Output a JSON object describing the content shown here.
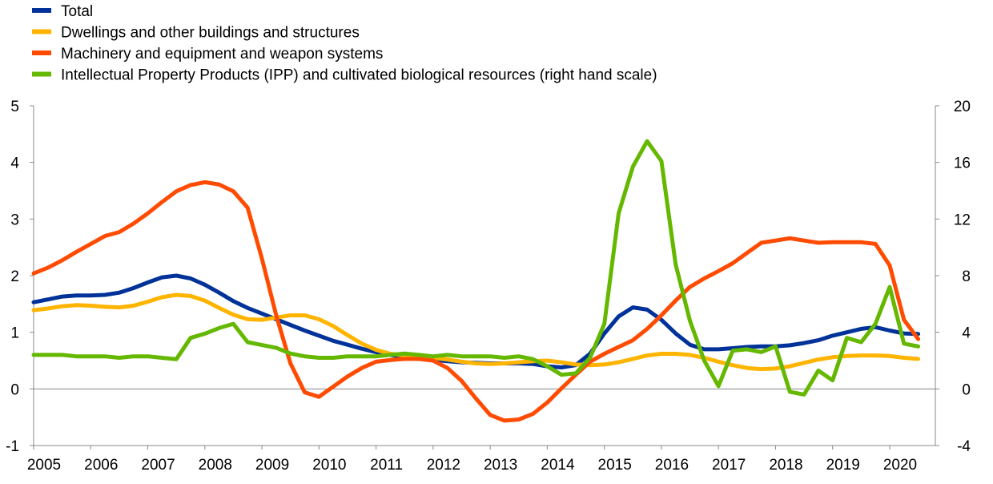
{
  "chart_data": {
    "type": "line",
    "title": "",
    "xlabel": "",
    "ylabel": "",
    "x_tick_labels": [
      "2005",
      "2006",
      "2007",
      "2008",
      "2009",
      "2010",
      "2011",
      "2012",
      "2013",
      "2014",
      "2015",
      "2016",
      "2017",
      "2018",
      "2019",
      "2020"
    ],
    "x_range": [
      2005.0,
      2020.8
    ],
    "ylim_left": [
      -1,
      5
    ],
    "yticks_left": [
      -1,
      0,
      1,
      2,
      3,
      4,
      5
    ],
    "ylim_right": [
      -4,
      20
    ],
    "yticks_right": [
      -4,
      0,
      4,
      8,
      12,
      16,
      20
    ],
    "legend_position": "top-left",
    "grid": false,
    "series": [
      {
        "name": "Total",
        "color": "#003299",
        "axis": "left",
        "x": [
          2005.0,
          2005.25,
          2005.5,
          2005.75,
          2006.0,
          2006.25,
          2006.5,
          2006.75,
          2007.0,
          2007.25,
          2007.5,
          2007.75,
          2008.0,
          2008.25,
          2008.5,
          2008.75,
          2009.0,
          2009.25,
          2009.5,
          2009.75,
          2010.0,
          2010.25,
          2010.5,
          2010.75,
          2011.0,
          2011.25,
          2011.5,
          2011.75,
          2012.0,
          2012.25,
          2012.5,
          2012.75,
          2013.0,
          2013.25,
          2013.5,
          2013.75,
          2014.0,
          2014.25,
          2014.5,
          2014.75,
          2015.0,
          2015.25,
          2015.5,
          2015.75,
          2016.0,
          2016.25,
          2016.5,
          2016.75,
          2017.0,
          2017.25,
          2017.5,
          2017.75,
          2018.0,
          2018.25,
          2018.5,
          2018.75,
          2019.0,
          2019.25,
          2019.5,
          2019.75,
          2020.0,
          2020.25,
          2020.5
        ],
        "y": [
          1.53,
          1.58,
          1.63,
          1.65,
          1.65,
          1.66,
          1.7,
          1.78,
          1.88,
          1.97,
          2.0,
          1.95,
          1.84,
          1.7,
          1.55,
          1.43,
          1.33,
          1.23,
          1.13,
          1.03,
          0.94,
          0.85,
          0.78,
          0.71,
          0.65,
          0.6,
          0.56,
          0.53,
          0.51,
          0.49,
          0.47,
          0.46,
          0.45,
          0.45,
          0.45,
          0.44,
          0.4,
          0.38,
          0.42,
          0.62,
          0.98,
          1.28,
          1.44,
          1.4,
          1.22,
          0.98,
          0.78,
          0.7,
          0.7,
          0.72,
          0.74,
          0.75,
          0.75,
          0.77,
          0.81,
          0.86,
          0.94,
          1.0,
          1.06,
          1.09,
          1.03,
          0.98,
          0.97
        ],
        "x_end": 2020.6
      },
      {
        "name": "Dwellings and other buildings and structures",
        "color": "#FFB400",
        "axis": "left",
        "x": [
          2005.0,
          2005.25,
          2005.5,
          2005.75,
          2006.0,
          2006.25,
          2006.5,
          2006.75,
          2007.0,
          2007.25,
          2007.5,
          2007.75,
          2008.0,
          2008.25,
          2008.5,
          2008.75,
          2009.0,
          2009.25,
          2009.5,
          2009.75,
          2010.0,
          2010.25,
          2010.5,
          2010.75,
          2011.0,
          2011.25,
          2011.5,
          2011.75,
          2012.0,
          2012.25,
          2012.5,
          2012.75,
          2013.0,
          2013.25,
          2013.5,
          2013.75,
          2014.0,
          2014.25,
          2014.5,
          2014.75,
          2015.0,
          2015.25,
          2015.5,
          2015.75,
          2016.0,
          2016.25,
          2016.5,
          2016.75,
          2017.0,
          2017.25,
          2017.5,
          2017.75,
          2018.0,
          2018.25,
          2018.5,
          2018.75,
          2019.0,
          2019.25,
          2019.5,
          2019.75,
          2020.0,
          2020.25,
          2020.5
        ],
        "y": [
          1.39,
          1.42,
          1.46,
          1.48,
          1.47,
          1.45,
          1.44,
          1.47,
          1.54,
          1.62,
          1.66,
          1.64,
          1.56,
          1.43,
          1.31,
          1.23,
          1.22,
          1.26,
          1.3,
          1.3,
          1.23,
          1.11,
          0.95,
          0.8,
          0.69,
          0.62,
          0.59,
          0.57,
          0.55,
          0.52,
          0.48,
          0.45,
          0.44,
          0.45,
          0.47,
          0.49,
          0.5,
          0.47,
          0.43,
          0.42,
          0.43,
          0.47,
          0.53,
          0.59,
          0.62,
          0.62,
          0.6,
          0.55,
          0.48,
          0.42,
          0.37,
          0.35,
          0.36,
          0.4,
          0.46,
          0.52,
          0.56,
          0.58,
          0.59,
          0.59,
          0.58,
          0.55,
          0.53
        ],
        "x_end": 2020.6
      },
      {
        "name": "Machinery and equipment and weapon systems",
        "color": "#FF4B00",
        "axis": "left",
        "x": [
          2005.0,
          2005.25,
          2005.5,
          2005.75,
          2006.0,
          2006.25,
          2006.5,
          2006.75,
          2007.0,
          2007.25,
          2007.5,
          2007.75,
          2008.0,
          2008.25,
          2008.5,
          2008.75,
          2009.0,
          2009.25,
          2009.5,
          2009.75,
          2010.0,
          2010.25,
          2010.5,
          2010.75,
          2011.0,
          2011.25,
          2011.5,
          2011.75,
          2012.0,
          2012.25,
          2012.5,
          2012.75,
          2013.0,
          2013.25,
          2013.5,
          2013.75,
          2014.0,
          2014.25,
          2014.5,
          2014.75,
          2015.0,
          2015.25,
          2015.5,
          2015.75,
          2016.0,
          2016.25,
          2016.5,
          2016.75,
          2017.0,
          2017.25,
          2017.5,
          2017.75,
          2018.0,
          2018.25,
          2018.5,
          2018.75,
          2019.0,
          2019.25,
          2019.5,
          2019.75,
          2020.0,
          2020.25,
          2020.5
        ],
        "y": [
          2.04,
          2.14,
          2.27,
          2.42,
          2.56,
          2.7,
          2.77,
          2.92,
          3.1,
          3.3,
          3.49,
          3.6,
          3.65,
          3.61,
          3.49,
          3.2,
          2.3,
          1.3,
          0.45,
          -0.06,
          -0.14,
          0.04,
          0.22,
          0.37,
          0.48,
          0.51,
          0.53,
          0.53,
          0.5,
          0.37,
          0.14,
          -0.17,
          -0.46,
          -0.56,
          -0.54,
          -0.44,
          -0.24,
          0.01,
          0.25,
          0.48,
          0.62,
          0.74,
          0.86,
          1.06,
          1.3,
          1.56,
          1.8,
          1.95,
          2.08,
          2.22,
          2.4,
          2.58,
          2.62,
          2.66,
          2.62,
          2.58,
          2.59,
          2.59,
          2.59,
          2.56,
          2.18,
          1.22,
          0.88
        ],
        "x_end": 2020.6
      },
      {
        "name": "Intellectual Property Products (IPP) and cultivated biological resources (right hand scale)",
        "color": "#65B800",
        "axis": "right",
        "x": [
          2005.0,
          2005.25,
          2005.5,
          2005.75,
          2006.0,
          2006.25,
          2006.5,
          2006.75,
          2007.0,
          2007.25,
          2007.5,
          2007.75,
          2008.0,
          2008.25,
          2008.5,
          2008.75,
          2009.0,
          2009.25,
          2009.5,
          2009.75,
          2010.0,
          2010.25,
          2010.5,
          2010.75,
          2011.0,
          2011.25,
          2011.5,
          2011.75,
          2012.0,
          2012.25,
          2012.5,
          2012.75,
          2013.0,
          2013.25,
          2013.5,
          2013.75,
          2014.0,
          2014.25,
          2014.5,
          2014.75,
          2015.0,
          2015.25,
          2015.5,
          2015.75,
          2016.0,
          2016.25,
          2016.5,
          2016.75,
          2017.0,
          2017.25,
          2017.5,
          2017.75,
          2018.0,
          2018.25,
          2018.5,
          2018.75,
          2019.0,
          2019.25,
          2019.5,
          2019.75,
          2020.0,
          2020.25,
          2020.5
        ],
        "y": [
          2.4,
          2.4,
          2.4,
          2.3,
          2.3,
          2.3,
          2.2,
          2.3,
          2.3,
          2.2,
          2.1,
          3.6,
          3.9,
          4.3,
          4.6,
          3.3,
          3.1,
          2.9,
          2.5,
          2.3,
          2.2,
          2.2,
          2.3,
          2.3,
          2.3,
          2.4,
          2.5,
          2.4,
          2.3,
          2.4,
          2.3,
          2.3,
          2.3,
          2.2,
          2.3,
          2.1,
          1.6,
          1.0,
          1.1,
          2.2,
          4.6,
          12.4,
          15.7,
          17.5,
          16.1,
          8.8,
          4.8,
          2.0,
          0.2,
          2.7,
          2.8,
          2.6,
          3.0,
          -0.2,
          -0.4,
          1.3,
          0.6,
          3.6,
          3.3,
          4.6,
          7.2,
          3.2,
          3.0
        ],
        "x_end": 2020.6
      }
    ]
  }
}
